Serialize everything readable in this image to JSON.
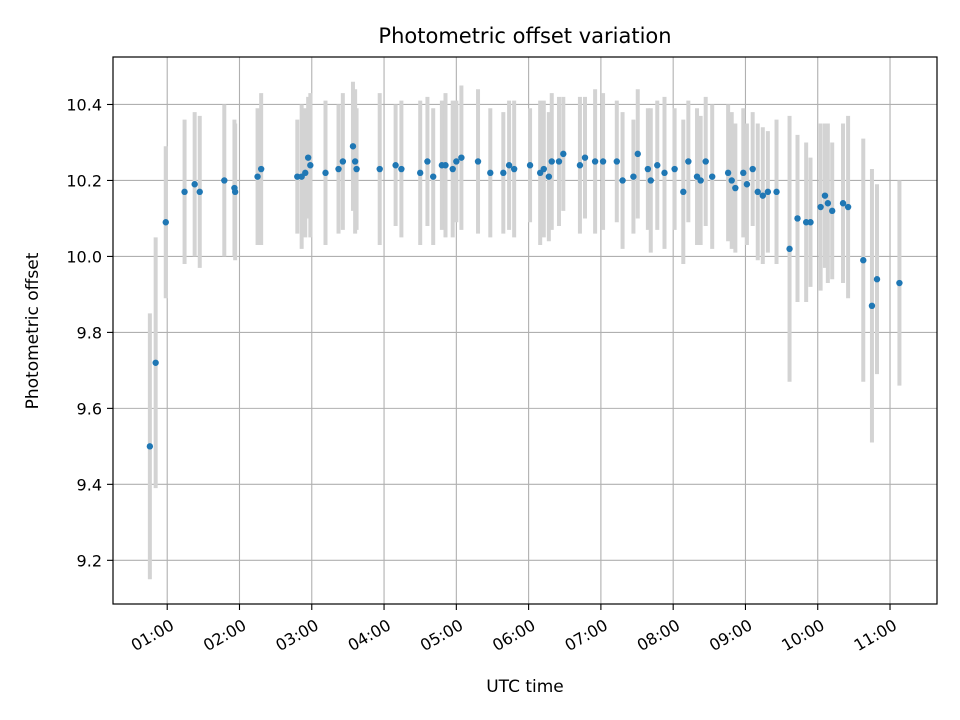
{
  "chart_data": {
    "type": "scatter",
    "title": "Photometric offset variation",
    "xlabel": "UTC time",
    "ylabel": "Photometric offset",
    "xlim_hours": [
      0.25,
      11.65
    ],
    "ylim": [
      9.085,
      10.525
    ],
    "grid": true,
    "x_ticks": [
      {
        "value": 1,
        "label": "01:00"
      },
      {
        "value": 2,
        "label": "02:00"
      },
      {
        "value": 3,
        "label": "03:00"
      },
      {
        "value": 4,
        "label": "04:00"
      },
      {
        "value": 5,
        "label": "05:00"
      },
      {
        "value": 6,
        "label": "06:00"
      },
      {
        "value": 7,
        "label": "07:00"
      },
      {
        "value": 8,
        "label": "08:00"
      },
      {
        "value": 9,
        "label": "09:00"
      },
      {
        "value": 10,
        "label": "10:00"
      },
      {
        "value": 11,
        "label": "11:00"
      }
    ],
    "y_ticks": [
      {
        "value": 9.2,
        "label": "9.2"
      },
      {
        "value": 9.4,
        "label": "9.4"
      },
      {
        "value": 9.6,
        "label": "9.6"
      },
      {
        "value": 9.8,
        "label": "9.8"
      },
      {
        "value": 10.0,
        "label": "10.0"
      },
      {
        "value": 10.2,
        "label": "10.2"
      },
      {
        "value": 10.4,
        "label": "10.4"
      }
    ],
    "colors": {
      "points": "#1f77b4",
      "errorbars": "#d3d3d3",
      "grid": "#b0b0b0"
    },
    "series": [
      {
        "name": "offset",
        "points": [
          [
            0.76,
            9.5,
            0.35
          ],
          [
            0.84,
            9.72,
            0.33
          ],
          [
            0.98,
            10.09,
            0.2
          ],
          [
            1.24,
            10.17,
            0.19
          ],
          [
            1.38,
            10.19,
            0.19
          ],
          [
            1.45,
            10.17,
            0.2
          ],
          [
            1.79,
            10.2,
            0.2
          ],
          [
            1.93,
            10.18,
            0.18
          ],
          [
            1.94,
            10.17,
            0.18
          ],
          [
            2.25,
            10.21,
            0.18
          ],
          [
            2.3,
            10.23,
            0.2
          ],
          [
            2.8,
            10.21,
            0.15
          ],
          [
            2.86,
            10.21,
            0.19
          ],
          [
            2.91,
            10.22,
            0.17
          ],
          [
            2.95,
            10.26,
            0.16
          ],
          [
            2.98,
            10.24,
            0.19
          ],
          [
            3.19,
            10.22,
            0.19
          ],
          [
            3.37,
            10.23,
            0.17
          ],
          [
            3.43,
            10.25,
            0.18
          ],
          [
            3.57,
            10.29,
            0.17
          ],
          [
            3.6,
            10.25,
            0.19
          ],
          [
            3.62,
            10.23,
            0.16
          ],
          [
            3.94,
            10.23,
            0.2
          ],
          [
            4.16,
            10.24,
            0.16
          ],
          [
            4.24,
            10.23,
            0.18
          ],
          [
            4.5,
            10.22,
            0.19
          ],
          [
            4.6,
            10.25,
            0.17
          ],
          [
            4.68,
            10.21,
            0.18
          ],
          [
            4.8,
            10.24,
            0.17
          ],
          [
            4.85,
            10.24,
            0.19
          ],
          [
            4.95,
            10.23,
            0.18
          ],
          [
            5.0,
            10.25,
            0.16
          ],
          [
            5.07,
            10.26,
            0.19
          ],
          [
            5.3,
            10.25,
            0.19
          ],
          [
            5.47,
            10.22,
            0.17
          ],
          [
            5.65,
            10.22,
            0.16
          ],
          [
            5.73,
            10.24,
            0.17
          ],
          [
            5.8,
            10.23,
            0.18
          ],
          [
            6.02,
            10.24,
            0.15
          ],
          [
            6.16,
            10.22,
            0.19
          ],
          [
            6.21,
            10.23,
            0.18
          ],
          [
            6.28,
            10.21,
            0.17
          ],
          [
            6.32,
            10.25,
            0.18
          ],
          [
            6.42,
            10.25,
            0.17
          ],
          [
            6.48,
            10.27,
            0.15
          ],
          [
            6.71,
            10.24,
            0.18
          ],
          [
            6.78,
            10.26,
            0.16
          ],
          [
            6.92,
            10.25,
            0.19
          ],
          [
            7.03,
            10.25,
            0.18
          ],
          [
            7.22,
            10.25,
            0.16
          ],
          [
            7.3,
            10.2,
            0.18
          ],
          [
            7.45,
            10.21,
            0.15
          ],
          [
            7.51,
            10.27,
            0.17
          ],
          [
            7.65,
            10.23,
            0.16
          ],
          [
            7.69,
            10.2,
            0.19
          ],
          [
            7.78,
            10.24,
            0.17
          ],
          [
            7.88,
            10.22,
            0.2
          ],
          [
            8.02,
            10.23,
            0.16
          ],
          [
            8.14,
            10.17,
            0.19
          ],
          [
            8.21,
            10.25,
            0.16
          ],
          [
            8.33,
            10.21,
            0.18
          ],
          [
            8.38,
            10.2,
            0.17
          ],
          [
            8.45,
            10.25,
            0.17
          ],
          [
            8.54,
            10.21,
            0.19
          ],
          [
            8.76,
            10.22,
            0.18
          ],
          [
            8.81,
            10.2,
            0.18
          ],
          [
            8.86,
            10.18,
            0.17
          ],
          [
            8.97,
            10.22,
            0.17
          ],
          [
            9.02,
            10.19,
            0.16
          ],
          [
            9.1,
            10.23,
            0.15
          ],
          [
            9.17,
            10.17,
            0.18
          ],
          [
            9.24,
            10.16,
            0.18
          ],
          [
            9.31,
            10.17,
            0.16
          ],
          [
            9.43,
            10.17,
            0.19
          ],
          [
            9.61,
            10.02,
            0.35
          ],
          [
            9.72,
            10.1,
            0.22
          ],
          [
            9.84,
            10.09,
            0.21
          ],
          [
            9.9,
            10.09,
            0.17
          ],
          [
            10.04,
            10.13,
            0.22
          ],
          [
            10.1,
            10.16,
            0.19
          ],
          [
            10.14,
            10.14,
            0.21
          ],
          [
            10.2,
            10.12,
            0.18
          ],
          [
            10.35,
            10.14,
            0.21
          ],
          [
            10.42,
            10.13,
            0.24
          ],
          [
            10.63,
            9.99,
            0.32
          ],
          [
            10.75,
            9.87,
            0.36
          ],
          [
            10.82,
            9.94,
            0.25
          ],
          [
            11.13,
            9.93,
            0.27
          ]
        ]
      }
    ]
  }
}
